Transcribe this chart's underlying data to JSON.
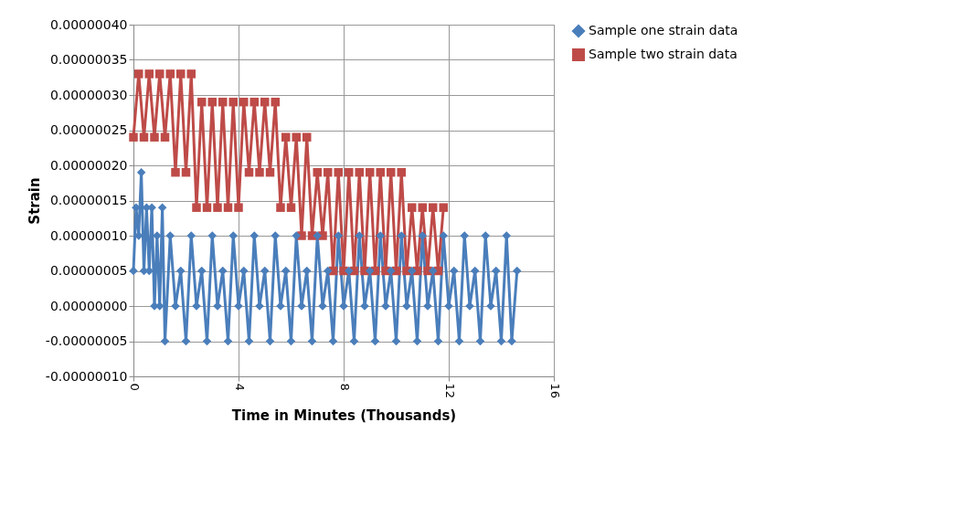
{
  "chart_data": {
    "type": "line",
    "xlabel": "Time in Minutes (Thousands)",
    "ylabel": "Strain",
    "xlim": [
      0,
      16
    ],
    "xticks": [
      0,
      4,
      8,
      12,
      16
    ],
    "ylim": [
      -1e-07,
      4e-07
    ],
    "yticks": [
      {
        "value": -1e-07,
        "label": "-0.00000010"
      },
      {
        "value": -5e-08,
        "label": "-0.00000005"
      },
      {
        "value": 0,
        "label": "0.00000000"
      },
      {
        "value": 5e-08,
        "label": "0.00000005"
      },
      {
        "value": 1e-07,
        "label": "0.00000010"
      },
      {
        "value": 1.5e-07,
        "label": "0.00000015"
      },
      {
        "value": 2e-07,
        "label": "0.00000020"
      },
      {
        "value": 2.5e-07,
        "label": "0.00000025"
      },
      {
        "value": 3e-07,
        "label": "0.00000030"
      },
      {
        "value": 3.5e-07,
        "label": "0.00000035"
      },
      {
        "value": 4e-07,
        "label": "0.00000040"
      }
    ],
    "grid": true,
    "legend": "right",
    "series": [
      {
        "name": "Sample one strain data",
        "color": "#4a7ebb",
        "marker": "diamond",
        "x": [
          0,
          0.1,
          0.2,
          0.3,
          0.4,
          0.5,
          0.6,
          0.7,
          0.8,
          0.9,
          1.0,
          1.1,
          1.2,
          1.4,
          1.6,
          1.8,
          2.0,
          2.2,
          2.4,
          2.6,
          2.8,
          3.0,
          3.2,
          3.4,
          3.6,
          3.8,
          4.0,
          4.2,
          4.4,
          4.6,
          4.8,
          5.0,
          5.2,
          5.4,
          5.6,
          5.8,
          6.0,
          6.2,
          6.4,
          6.6,
          6.8,
          7.0,
          7.2,
          7.4,
          7.6,
          7.8,
          8.0,
          8.2,
          8.4,
          8.6,
          8.8,
          9.0,
          9.2,
          9.4,
          9.6,
          9.8,
          10.0,
          10.2,
          10.4,
          10.6,
          10.8,
          11.0,
          11.2,
          11.4,
          11.6,
          11.8,
          12.0,
          12.2,
          12.4,
          12.6,
          12.8,
          13.0,
          13.2,
          13.4,
          13.6,
          13.8,
          14.0,
          14.2,
          14.4,
          14.6
        ],
        "values": [
          5e-08,
          1.4e-07,
          1e-07,
          1.9e-07,
          5e-08,
          1.4e-07,
          5e-08,
          1.4e-07,
          0,
          1e-07,
          0,
          1.4e-07,
          -5e-08,
          1e-07,
          0,
          5e-08,
          -5e-08,
          1e-07,
          0,
          5e-08,
          -5e-08,
          1e-07,
          0,
          5e-08,
          -5e-08,
          1e-07,
          0,
          5e-08,
          -5e-08,
          1e-07,
          0,
          5e-08,
          -5e-08,
          1e-07,
          0,
          5e-08,
          -5e-08,
          1e-07,
          0,
          5e-08,
          -5e-08,
          1e-07,
          0,
          5e-08,
          -5e-08,
          1e-07,
          0,
          5e-08,
          -5e-08,
          1e-07,
          0,
          5e-08,
          -5e-08,
          1e-07,
          0,
          5e-08,
          -5e-08,
          1e-07,
          0,
          5e-08,
          -5e-08,
          1e-07,
          0,
          5e-08,
          -5e-08,
          1e-07,
          0,
          5e-08,
          -5e-08,
          1e-07,
          0,
          5e-08,
          -5e-08,
          1e-07,
          0,
          5e-08,
          -5e-08,
          1e-07,
          -5e-08,
          5e-08
        ]
      },
      {
        "name": "Sample two strain data",
        "color": "#be4b48",
        "marker": "square",
        "x": [
          0,
          0.2,
          0.4,
          0.6,
          0.8,
          1.0,
          1.2,
          1.4,
          1.6,
          1.8,
          2.0,
          2.2,
          2.4,
          2.6,
          2.8,
          3.0,
          3.2,
          3.4,
          3.6,
          3.8,
          4.0,
          4.2,
          4.4,
          4.6,
          4.8,
          5.0,
          5.2,
          5.4,
          5.6,
          5.8,
          6.0,
          6.2,
          6.4,
          6.6,
          6.8,
          7.0,
          7.2,
          7.4,
          7.6,
          7.8,
          8.0,
          8.2,
          8.4,
          8.6,
          8.8,
          9.0,
          9.2,
          9.4,
          9.6,
          9.8,
          10.0,
          10.2,
          10.4,
          10.6,
          10.8,
          11.0,
          11.2,
          11.4,
          11.6,
          11.8
        ],
        "values": [
          2.4e-07,
          3.3e-07,
          2.4e-07,
          3.3e-07,
          2.4e-07,
          3.3e-07,
          2.4e-07,
          3.3e-07,
          1.9e-07,
          3.3e-07,
          1.9e-07,
          3.3e-07,
          1.4e-07,
          2.9e-07,
          1.4e-07,
          2.9e-07,
          1.4e-07,
          2.9e-07,
          1.4e-07,
          2.9e-07,
          1.4e-07,
          2.9e-07,
          1.9e-07,
          2.9e-07,
          1.9e-07,
          2.9e-07,
          1.9e-07,
          2.9e-07,
          1.4e-07,
          2.4e-07,
          1.4e-07,
          2.4e-07,
          1e-07,
          2.4e-07,
          1e-07,
          1.9e-07,
          1e-07,
          1.9e-07,
          5e-08,
          1.9e-07,
          5e-08,
          1.9e-07,
          5e-08,
          1.9e-07,
          5e-08,
          1.9e-07,
          5e-08,
          1.9e-07,
          5e-08,
          1.9e-07,
          5e-08,
          1.9e-07,
          5e-08,
          1.4e-07,
          5e-08,
          1.4e-07,
          5e-08,
          1.4e-07,
          5e-08,
          1.4e-07
        ]
      }
    ]
  }
}
